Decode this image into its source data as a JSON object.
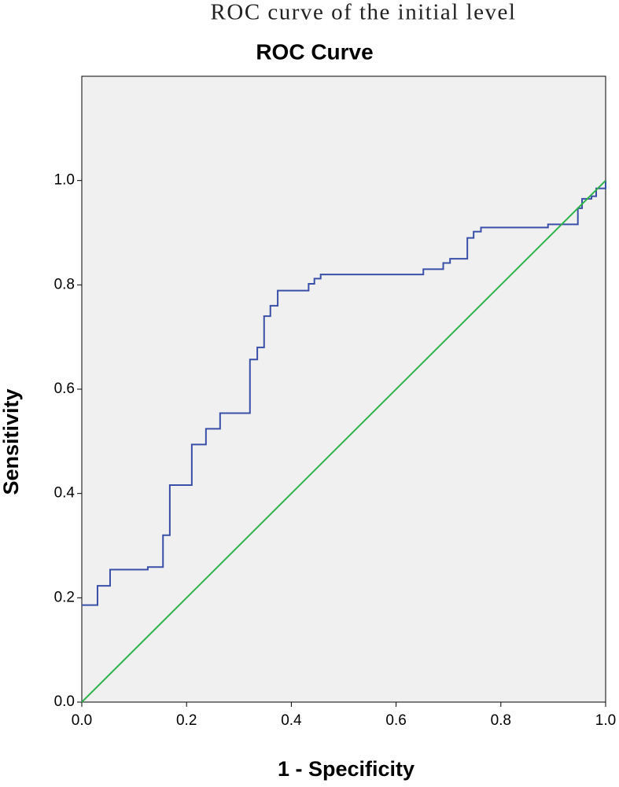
{
  "chart_data": {
    "type": "line",
    "caption": "ROC curve of the initial level",
    "title": "ROC Curve",
    "x_label": "1 - Specificity",
    "y_label": "Sensitivity",
    "xlim": [
      0,
      1
    ],
    "ylim": [
      0,
      1.2
    ],
    "xticks": [
      {
        "value": 0,
        "label": "0.0"
      },
      {
        "value": 0.2,
        "label": "0.2"
      },
      {
        "value": 0.4,
        "label": "0.4"
      },
      {
        "value": 0.6,
        "label": "0.6"
      },
      {
        "value": 0.8,
        "label": "0.8"
      },
      {
        "value": 1,
        "label": "1.0"
      }
    ],
    "yticks": [
      {
        "value": 0,
        "label": "0.0"
      },
      {
        "value": 0.2,
        "label": "0.2"
      },
      {
        "value": 0.4,
        "label": "0.4"
      },
      {
        "value": 0.6,
        "label": "0.6"
      },
      {
        "value": 0.8,
        "label": "0.8"
      },
      {
        "value": 1,
        "label": "1.0"
      }
    ],
    "background": "#f0f0f0",
    "series": [
      {
        "color": "#3a4fa8",
        "x": [
          0,
          0.03,
          0.03,
          0.054,
          0.054,
          0.126,
          0.126,
          0.155,
          0.155,
          0.168,
          0.168,
          0.21,
          0.21,
          0.237,
          0.237,
          0.264,
          0.264,
          0.321,
          0.321,
          0.335,
          0.335,
          0.348,
          0.348,
          0.36,
          0.36,
          0.374,
          0.374,
          0.433,
          0.433,
          0.444,
          0.444,
          0.456,
          0.456,
          0.652,
          0.652,
          0.69,
          0.69,
          0.703,
          0.703,
          0.736,
          0.736,
          0.748,
          0.748,
          0.762,
          0.762,
          0.89,
          0.89,
          0.947,
          0.947,
          0.955,
          0.955,
          0.973,
          0.973,
          0.982,
          0.982,
          1,
          1
        ],
        "values": [
          0.186,
          0.186,
          0.223,
          0.223,
          0.254,
          0.254,
          0.259,
          0.259,
          0.32,
          0.32,
          0.416,
          0.416,
          0.494,
          0.494,
          0.524,
          0.524,
          0.554,
          0.554,
          0.657,
          0.657,
          0.68,
          0.68,
          0.74,
          0.74,
          0.76,
          0.76,
          0.789,
          0.789,
          0.802,
          0.802,
          0.812,
          0.812,
          0.82,
          0.82,
          0.83,
          0.83,
          0.842,
          0.842,
          0.85,
          0.85,
          0.89,
          0.89,
          0.902,
          0.902,
          0.91,
          0.91,
          0.916,
          0.916,
          0.947,
          0.947,
          0.965,
          0.965,
          0.97,
          0.97,
          0.985,
          0.985,
          1
        ]
      },
      {
        "color": "#2db34a",
        "x": [
          0,
          1
        ],
        "values": [
          0,
          1
        ]
      }
    ]
  }
}
